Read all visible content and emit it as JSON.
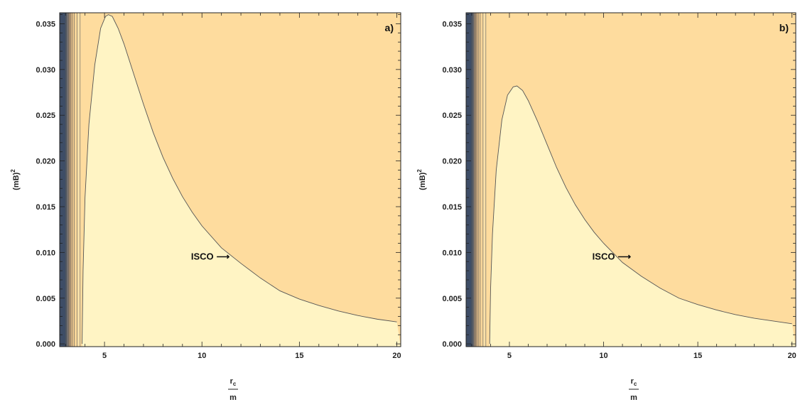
{
  "chart_data": [
    {
      "type": "contour",
      "panel_label": "a)",
      "xlabel_num": "r",
      "xlabel_sub": "c",
      "xlabel_den": "m",
      "ylabel_base": "(mB)",
      "ylabel_sup": "2",
      "xlim": [
        2.7,
        20.2
      ],
      "ylim": [
        -0.0003,
        0.0362
      ],
      "xticks": [
        5,
        10,
        15,
        20
      ],
      "xtick_labels": [
        "5",
        "10",
        "15",
        "20"
      ],
      "yticks": [
        0.0,
        0.005,
        0.01,
        0.015,
        0.02,
        0.025,
        0.03,
        0.035
      ],
      "ytick_labels": [
        "0.000",
        "0.005",
        "0.010",
        "0.015",
        "0.020",
        "0.025",
        "0.030",
        "0.035"
      ],
      "annotation": {
        "text": "ISCO",
        "arrow": "⟶",
        "x": 10.6,
        "y": 0.0092
      },
      "isco_curve": {
        "x": [
          3.85,
          3.9,
          4.0,
          4.2,
          4.5,
          4.8,
          5.05,
          5.2,
          5.4,
          5.7,
          6.0,
          6.5,
          7.0,
          7.5,
          8.0,
          8.5,
          9.0,
          9.5,
          10.0,
          11.0,
          12.0,
          13.0,
          14.0,
          15.0,
          16.0,
          17.0,
          18.0,
          19.0,
          20.0
        ],
        "y": [
          0.0,
          0.008,
          0.016,
          0.024,
          0.0305,
          0.0345,
          0.0358,
          0.036,
          0.0358,
          0.0345,
          0.0328,
          0.0295,
          0.0262,
          0.0231,
          0.0204,
          0.0181,
          0.0161,
          0.0144,
          0.0129,
          0.0105,
          0.0088,
          0.0072,
          0.0058,
          0.0049,
          0.0042,
          0.0036,
          0.0031,
          0.0027,
          0.0024
        ]
      },
      "inner_contours_x": [
        3.0,
        3.05,
        3.1,
        3.15,
        3.2,
        3.27,
        3.35,
        3.45,
        3.6,
        3.75
      ]
    },
    {
      "type": "contour",
      "panel_label": "b)",
      "xlabel_num": "r",
      "xlabel_sub": "c",
      "xlabel_den": "m",
      "ylabel_base": "(mB)",
      "ylabel_sup": "2",
      "xlim": [
        2.7,
        20.2
      ],
      "ylim": [
        -0.0003,
        0.0362
      ],
      "xticks": [
        5,
        10,
        15,
        20
      ],
      "xtick_labels": [
        "5",
        "10",
        "15",
        "20"
      ],
      "yticks": [
        0.0,
        0.005,
        0.01,
        0.015,
        0.02,
        0.025,
        0.03,
        0.035
      ],
      "ytick_labels": [
        "0.000",
        "0.005",
        "0.010",
        "0.015",
        "0.020",
        "0.025",
        "0.030",
        "0.035"
      ],
      "annotation": {
        "text": "ISCO",
        "arrow": "⟶",
        "x": 10.6,
        "y": 0.0092
      },
      "isco_curve": {
        "x": [
          3.95,
          4.0,
          4.1,
          4.3,
          4.6,
          4.9,
          5.2,
          5.4,
          5.7,
          6.0,
          6.5,
          7.0,
          7.5,
          8.0,
          8.5,
          9.0,
          9.5,
          10.0,
          11.0,
          12.0,
          13.0,
          14.0,
          15.0,
          16.0,
          17.0,
          18.0,
          19.0,
          20.0
        ],
        "y": [
          0.0,
          0.006,
          0.012,
          0.019,
          0.0245,
          0.0272,
          0.0281,
          0.0282,
          0.0277,
          0.0266,
          0.0243,
          0.0218,
          0.0193,
          0.0171,
          0.0152,
          0.0136,
          0.0122,
          0.011,
          0.0089,
          0.0074,
          0.0061,
          0.005,
          0.0043,
          0.0037,
          0.0032,
          0.0028,
          0.0025,
          0.0022
        ]
      },
      "inner_contours_x": [
        3.0,
        3.05,
        3.1,
        3.15,
        3.2,
        3.27,
        3.35,
        3.45,
        3.6,
        3.75
      ]
    }
  ],
  "colors": {
    "outer_fill": "#fedc9e",
    "inner_fill": "#fff4c4",
    "contour_line": "#555555",
    "near_horizon": [
      "#3e4d66",
      "#6a6f7a",
      "#8f7f73",
      "#b0926f",
      "#cba57a",
      "#e2bb85",
      "#f0cb8f",
      "#f8d699",
      "#fbe0a8",
      "#fde9b6"
    ]
  }
}
